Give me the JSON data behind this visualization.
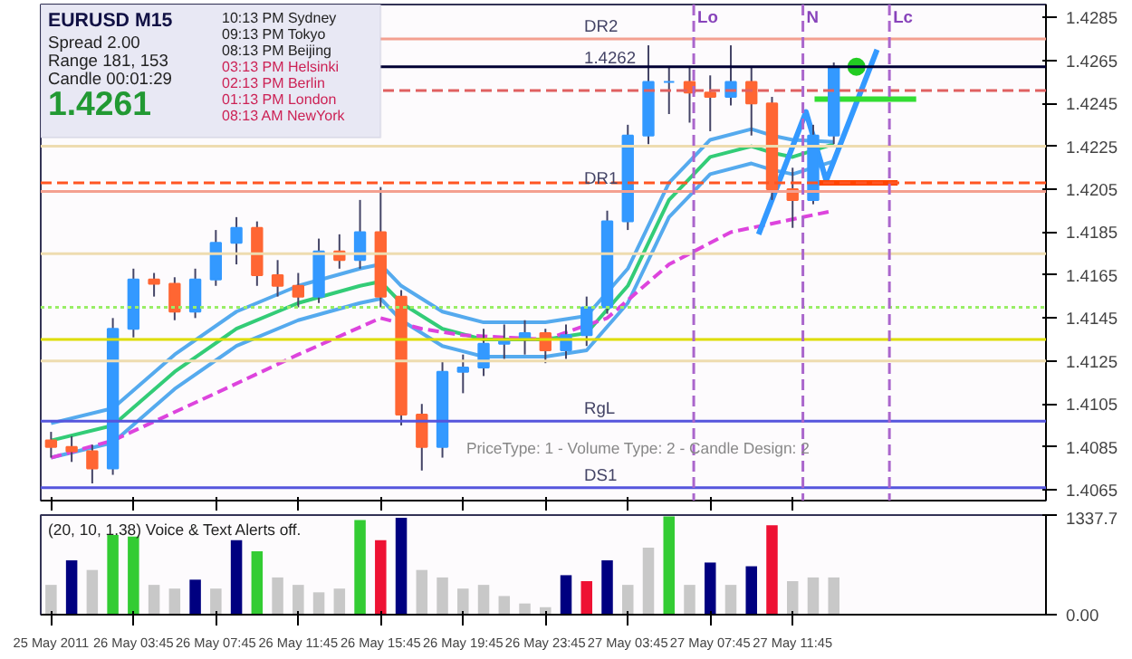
{
  "chart_data": [
    {
      "type": "candlestick",
      "title": "EURUSD  M15",
      "annotations": [
        "Spread  2.00",
        "Range   181, 153",
        "Candle  00:01:29",
        "1.4261",
        "10:13 PM  Sydney",
        "09:13 PM  Tokyo",
        "08:13 PM  Beijing",
        "03:13 PM  Helsinki",
        "02:13 PM  Berlin",
        "01:13 PM  London",
        "08:13 AM  NewYork",
        "PriceType: 1 - Volume Type: 2 - Candle Design: 2"
      ],
      "x": [
        "2011-05-25T23:45",
        "2011-05-26T00:45",
        "2011-05-26T01:45",
        "2011-05-26T02:45",
        "2011-05-26T03:45",
        "2011-05-26T04:45",
        "2011-05-26T05:45",
        "2011-05-26T06:45",
        "2011-05-26T07:45",
        "2011-05-26T08:45",
        "2011-05-26T09:45",
        "2011-05-26T10:45",
        "2011-05-26T11:45",
        "2011-05-26T12:45",
        "2011-05-26T13:45",
        "2011-05-26T14:45",
        "2011-05-26T15:45",
        "2011-05-26T16:45",
        "2011-05-26T17:45",
        "2011-05-26T18:45",
        "2011-05-26T19:45",
        "2011-05-26T20:45",
        "2011-05-26T21:45",
        "2011-05-26T22:45",
        "2011-05-26T23:45",
        "2011-05-27T00:45",
        "2011-05-27T01:45",
        "2011-05-27T02:45",
        "2011-05-27T03:45",
        "2011-05-27T04:45",
        "2011-05-27T05:45",
        "2011-05-27T06:45",
        "2011-05-27T07:45",
        "2011-05-27T08:45",
        "2011-05-27T09:45",
        "2011-05-27T10:45",
        "2011-05-27T11:45",
        "2011-05-27T12:45",
        "2011-05-27T13:45"
      ],
      "ohlc": [
        [
          1.4088,
          1.4092,
          1.408,
          1.4085
        ],
        [
          1.4085,
          1.409,
          1.4078,
          1.4083
        ],
        [
          1.4083,
          1.4086,
          1.4068,
          1.4075
        ],
        [
          1.4075,
          1.4145,
          1.4072,
          1.414
        ],
        [
          1.414,
          1.4168,
          1.4136,
          1.4163
        ],
        [
          1.4163,
          1.4166,
          1.4155,
          1.4161
        ],
        [
          1.4161,
          1.4164,
          1.4144,
          1.4148
        ],
        [
          1.4148,
          1.4168,
          1.4145,
          1.4163
        ],
        [
          1.4163,
          1.4186,
          1.416,
          1.418
        ],
        [
          1.418,
          1.4192,
          1.417,
          1.4187
        ],
        [
          1.4187,
          1.419,
          1.416,
          1.4165
        ],
        [
          1.4165,
          1.4172,
          1.4155,
          1.416
        ],
        [
          1.416,
          1.4166,
          1.415,
          1.4155
        ],
        [
          1.4155,
          1.4182,
          1.4152,
          1.4176
        ],
        [
          1.4176,
          1.4184,
          1.4168,
          1.4172
        ],
        [
          1.4172,
          1.42,
          1.4168,
          1.4185
        ],
        [
          1.4185,
          1.4206,
          1.415,
          1.4155
        ],
        [
          1.4155,
          1.4158,
          1.4095,
          1.41
        ],
        [
          1.41,
          1.4105,
          1.4074,
          1.4085
        ],
        [
          1.4085,
          1.4125,
          1.408,
          1.412
        ],
        [
          1.412,
          1.4128,
          1.411,
          1.4122
        ],
        [
          1.4122,
          1.414,
          1.4118,
          1.4133
        ],
        [
          1.4133,
          1.4142,
          1.4126,
          1.4135
        ],
        [
          1.4135,
          1.4144,
          1.4128,
          1.4138
        ],
        [
          1.4138,
          1.414,
          1.4124,
          1.413
        ],
        [
          1.413,
          1.4142,
          1.4126,
          1.4137
        ],
        [
          1.4137,
          1.4155,
          1.4132,
          1.415
        ],
        [
          1.415,
          1.4195,
          1.4147,
          1.419
        ],
        [
          1.419,
          1.4235,
          1.4186,
          1.423
        ],
        [
          1.423,
          1.4272,
          1.4226,
          1.4255
        ],
        [
          1.4255,
          1.4262,
          1.424,
          1.4255
        ],
        [
          1.4255,
          1.4262,
          1.4236,
          1.425
        ],
        [
          1.425,
          1.4258,
          1.4232,
          1.4248
        ],
        [
          1.4248,
          1.4272,
          1.4244,
          1.4255
        ],
        [
          1.4255,
          1.4262,
          1.423,
          1.4245
        ],
        [
          1.4245,
          1.4248,
          1.42,
          1.4205
        ],
        [
          1.4205,
          1.4215,
          1.4187,
          1.42
        ],
        [
          1.42,
          1.4235,
          1.4198,
          1.423
        ],
        [
          1.423,
          1.4264,
          1.4226,
          1.4262
        ]
      ],
      "colors": [
        "#ff6633",
        "#ff6633",
        "#ff6633",
        "#3399ff",
        "#3399ff",
        "#ff6633",
        "#ff6633",
        "#3399ff",
        "#3399ff",
        "#3399ff",
        "#ff6633",
        "#ff6633",
        "#ff6633",
        "#3399ff",
        "#ff6633",
        "#3399ff",
        "#ff6633",
        "#ff6633",
        "#ff6633",
        "#3399ff",
        "#3399ff",
        "#3399ff",
        "#3399ff",
        "#3399ff",
        "#ff6633",
        "#3399ff",
        "#3399ff",
        "#3399ff",
        "#3399ff",
        "#3399ff",
        "#3399ff",
        "#ff6633",
        "#ff6633",
        "#3399ff",
        "#ff6633",
        "#ff6633",
        "#ff6633",
        "#3399ff",
        "#3399ff"
      ],
      "series": [
        {
          "type": "line",
          "color": "#33cc77",
          "x": [
            "2011-05-25T23:45",
            "2011-05-26T02:45",
            "2011-05-26T05:45",
            "2011-05-26T08:45",
            "2011-05-26T11:45",
            "2011-05-26T14:45",
            "2011-05-26T15:45",
            "2011-05-26T16:45",
            "2011-05-26T18:45",
            "2011-05-26T20:45",
            "2011-05-26T23:45",
            "2011-05-27T01:45",
            "2011-05-27T03:45",
            "2011-05-27T05:45",
            "2011-05-27T07:45",
            "2011-05-27T09:45",
            "2011-05-27T10:45",
            "2011-05-27T11:45",
            "2011-05-27T13:45"
          ],
          "values": [
            1.4088,
            1.4095,
            1.412,
            1.414,
            1.4152,
            1.416,
            1.4162,
            1.4152,
            1.414,
            1.4135,
            1.4135,
            1.4138,
            1.416,
            1.42,
            1.422,
            1.4225,
            1.4222,
            1.422,
            1.4226
          ]
        },
        {
          "type": "line",
          "color": "#55aaee",
          "x": [
            "2011-05-25T23:45",
            "2011-05-26T02:45",
            "2011-05-26T05:45",
            "2011-05-26T08:45",
            "2011-05-26T11:45",
            "2011-05-26T14:45",
            "2011-05-26T15:45",
            "2011-05-26T16:45",
            "2011-05-26T18:45",
            "2011-05-26T20:45",
            "2011-05-26T23:45",
            "2011-05-27T01:45",
            "2011-05-27T03:45",
            "2011-05-27T05:45",
            "2011-05-27T07:45",
            "2011-05-27T09:45",
            "2011-05-27T10:45",
            "2011-05-27T11:45",
            "2011-05-27T13:45"
          ],
          "values": [
            1.4096,
            1.4103,
            1.4128,
            1.4148,
            1.416,
            1.4168,
            1.417,
            1.416,
            1.4148,
            1.4143,
            1.4143,
            1.4146,
            1.4168,
            1.4208,
            1.4228,
            1.4233,
            1.423,
            1.4228,
            1.4227
          ]
        },
        {
          "type": "line",
          "color": "#55aaee",
          "x": [
            "2011-05-25T23:45",
            "2011-05-26T02:45",
            "2011-05-26T05:45",
            "2011-05-26T08:45",
            "2011-05-26T11:45",
            "2011-05-26T14:45",
            "2011-05-26T15:45",
            "2011-05-26T16:45",
            "2011-05-26T18:45",
            "2011-05-26T20:45",
            "2011-05-26T23:45",
            "2011-05-27T01:45",
            "2011-05-27T03:45",
            "2011-05-27T05:45",
            "2011-05-27T07:45",
            "2011-05-27T09:45",
            "2011-05-27T10:45",
            "2011-05-27T11:45",
            "2011-05-27T13:45"
          ],
          "values": [
            1.408,
            1.4087,
            1.4112,
            1.4132,
            1.4144,
            1.4152,
            1.4154,
            1.4144,
            1.4132,
            1.4127,
            1.4127,
            1.413,
            1.4152,
            1.4192,
            1.4212,
            1.4217,
            1.4214,
            1.4212,
            1.4218
          ]
        },
        {
          "type": "line",
          "color": "#dd44dd",
          "line_style": "dashed",
          "x": [
            "2011-05-25T23:45",
            "2011-05-26T02:45",
            "2011-05-26T07:45",
            "2011-05-26T11:45",
            "2011-05-26T15:45",
            "2011-05-26T17:45",
            "2011-05-26T19:45",
            "2011-05-26T23:45",
            "2011-05-27T02:45",
            "2011-05-27T05:45",
            "2011-05-27T08:45",
            "2011-05-27T13:45"
          ],
          "values": [
            1.408,
            1.4088,
            1.411,
            1.4128,
            1.4145,
            1.414,
            1.4137,
            1.4135,
            1.4145,
            1.417,
            1.4185,
            1.4195
          ]
        },
        {
          "type": "line",
          "color": "#3399ff",
          "x": [
            "2011-05-27T10:06",
            "2011-05-27T12:24",
            "2011-05-27T13:23",
            "2011-05-27T15:51"
          ],
          "values": [
            1.4184,
            1.4241,
            1.4209,
            1.427
          ]
        },
        {
          "type": "line",
          "color": "#33dd33",
          "x": [
            "2011-05-27T12:49",
            "2011-05-27T17:45"
          ],
          "values": [
            1.4247,
            1.4247
          ]
        },
        {
          "type": "line",
          "color": "#ff4400",
          "x": [
            "2011-05-27T12:57",
            "2011-05-27T16:51"
          ],
          "values": [
            1.4208,
            1.4208
          ]
        },
        {
          "type": "scatter",
          "color": "#22cc22",
          "marker": "circle",
          "x": [
            "2011-05-27T14:51"
          ],
          "values": [
            1.4262
          ]
        }
      ],
      "ref_lines": [
        {
          "axis": "y",
          "value": 1.4275,
          "label": "DR2",
          "color": "#f4a090"
        },
        {
          "axis": "y",
          "value": 1.4262,
          "label": "1.4262",
          "color": "#000033"
        },
        {
          "axis": "y",
          "value": 1.4251,
          "color": "#e06060",
          "line_style": "dashed"
        },
        {
          "axis": "y",
          "value": 1.4225,
          "color": "#eedcb0"
        },
        {
          "axis": "y",
          "value": 1.4208,
          "color": "#ff5522",
          "line_style": "dashed"
        },
        {
          "axis": "y",
          "value": 1.4204,
          "label": "DR1",
          "color": "#f4a090"
        },
        {
          "axis": "y",
          "value": 1.4175,
          "color": "#eedcb0"
        },
        {
          "axis": "y",
          "value": 1.415,
          "color": "#99ee66",
          "line_style": "dotted"
        },
        {
          "axis": "y",
          "value": 1.4135,
          "color": "#dddd00"
        },
        {
          "axis": "y",
          "value": 1.4125,
          "color": "#eedcb0"
        },
        {
          "axis": "y",
          "value": 1.4097,
          "label": "RgL",
          "color": "#5555dd"
        },
        {
          "axis": "y",
          "value": 1.4066,
          "label": "DS1",
          "color": "#5555dd"
        },
        {
          "axis": "x",
          "value": "2011-05-27T06:57",
          "label": "Lo",
          "color": "#aa66cc",
          "line_style": "dashed"
        },
        {
          "axis": "x",
          "value": "2011-05-27T12:15",
          "label": "N",
          "color": "#aa66cc",
          "line_style": "dashed"
        },
        {
          "axis": "x",
          "value": "2011-05-27T16:27",
          "label": "Lc",
          "color": "#aa66cc",
          "line_style": "dashed"
        }
      ],
      "xlim": [
        "2011-05-25T23:15",
        "2011-05-28T00:03"
      ],
      "xticks": [
        {
          "value": "2011-05-25T23:45",
          "label": null
        },
        {
          "value": "2011-05-26T03:45",
          "label": null
        },
        {
          "value": "2011-05-26T07:45",
          "label": null
        },
        {
          "value": "2011-05-26T11:45",
          "label": null
        },
        {
          "value": "2011-05-26T15:45",
          "label": null
        },
        {
          "value": "2011-05-26T19:45",
          "label": null
        },
        {
          "value": "2011-05-26T23:45",
          "label": null
        },
        {
          "value": "2011-05-27T03:45",
          "label": null
        },
        {
          "value": "2011-05-27T07:45",
          "label": null
        },
        {
          "value": "2011-05-27T11:45",
          "label": null
        }
      ],
      "ylim": [
        1.406,
        1.4291
      ],
      "yticks": [
        1.4065,
        1.4085,
        1.4105,
        1.4125,
        1.4145,
        1.4165,
        1.4185,
        1.4205,
        1.4225,
        1.4245,
        1.4265,
        1.4285
      ],
      "tick_labels": "y"
    },
    {
      "type": "bar",
      "annotations": [
        "(20, 10, 1.38)    Voice & Text Alerts off."
      ],
      "x": [
        "2011-05-25T23:45",
        "2011-05-26T00:45",
        "2011-05-26T01:45",
        "2011-05-26T02:45",
        "2011-05-26T03:45",
        "2011-05-26T04:45",
        "2011-05-26T05:45",
        "2011-05-26T06:45",
        "2011-05-26T07:45",
        "2011-05-26T08:45",
        "2011-05-26T09:45",
        "2011-05-26T10:45",
        "2011-05-26T11:45",
        "2011-05-26T12:45",
        "2011-05-26T13:45",
        "2011-05-26T14:45",
        "2011-05-26T15:45",
        "2011-05-26T16:45",
        "2011-05-26T17:45",
        "2011-05-26T18:45",
        "2011-05-26T19:45",
        "2011-05-26T20:45",
        "2011-05-26T21:45",
        "2011-05-26T22:45",
        "2011-05-26T23:45",
        "2011-05-27T00:45",
        "2011-05-27T01:45",
        "2011-05-27T02:45",
        "2011-05-27T03:45",
        "2011-05-27T04:45",
        "2011-05-27T05:45",
        "2011-05-27T06:45",
        "2011-05-27T07:45",
        "2011-05-27T08:45",
        "2011-05-27T09:45",
        "2011-05-27T10:45",
        "2011-05-27T11:45",
        "2011-05-27T12:45",
        "2011-05-27T13:45"
      ],
      "values": [
        400,
        730,
        600,
        1070,
        1050,
        400,
        350,
        470,
        350,
        1000,
        850,
        500,
        400,
        300,
        350,
        1270,
        1000,
        1300,
        600,
        500,
        350,
        400,
        250,
        150,
        100,
        530,
        450,
        730,
        400,
        900,
        1320,
        400,
        700,
        400,
        650,
        1200,
        450,
        500,
        500
      ],
      "colors": [
        "#c8c8c8",
        "#000080",
        "#c8c8c8",
        "#33cc33",
        "#33cc33",
        "#c8c8c8",
        "#c8c8c8",
        "#000080",
        "#c8c8c8",
        "#000080",
        "#33cc33",
        "#c8c8c8",
        "#c8c8c8",
        "#c8c8c8",
        "#c8c8c8",
        "#33cc33",
        "#ee1133",
        "#000080",
        "#c8c8c8",
        "#c8c8c8",
        "#c8c8c8",
        "#c8c8c8",
        "#c8c8c8",
        "#c8c8c8",
        "#c8c8c8",
        "#000080",
        "#ee1133",
        "#000080",
        "#c8c8c8",
        "#c8c8c8",
        "#33cc33",
        "#c8c8c8",
        "#000080",
        "#c8c8c8",
        "#000080",
        "#ee1133",
        "#c8c8c8",
        "#c8c8c8",
        "#c8c8c8"
      ],
      "xlim": [
        "2011-05-25T23:15",
        "2011-05-28T00:03"
      ],
      "xticks": [
        {
          "value": "2011-05-25T23:45",
          "label": "25 May 2011"
        },
        {
          "value": "2011-05-26T03:45",
          "label": "26 May 03:45"
        },
        {
          "value": "2011-05-26T07:45",
          "label": "26 May 07:45"
        },
        {
          "value": "2011-05-26T11:45",
          "label": "26 May 11:45"
        },
        {
          "value": "2011-05-26T15:45",
          "label": "26 May 15:45"
        },
        {
          "value": "2011-05-26T19:45",
          "label": "26 May 19:45"
        },
        {
          "value": "2011-05-26T23:45",
          "label": "26 May 23:45"
        },
        {
          "value": "2011-05-27T03:45",
          "label": "27 May 03:45"
        },
        {
          "value": "2011-05-27T07:45",
          "label": "27 May 07:45"
        },
        {
          "value": "2011-05-27T11:45",
          "label": "27 May 11:45"
        }
      ],
      "ylim": [
        0,
        1337.7
      ],
      "yticks": [
        {
          "value": 0,
          "label": "0.00"
        },
        1337.7
      ]
    }
  ]
}
